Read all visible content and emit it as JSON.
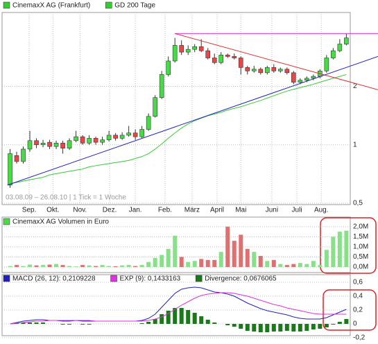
{
  "chart_data": [
    {
      "type": "candlestick",
      "name": "CinemaxX AG (Frankfurt)",
      "legend_color": "#33cc33",
      "up_color": "#44dd44",
      "down_color": "#ee4444",
      "open": [
        0.62,
        0.88,
        0.82,
        0.95,
        1.05,
        1.0,
        1.03,
        0.98,
        1.02,
        0.96,
        1.05,
        1.1,
        1.02,
        1.08,
        1.03,
        1.06,
        1.12,
        1.08,
        1.12,
        1.15,
        1.1,
        1.2,
        1.4,
        1.75,
        2.3,
        2.7,
        3.25,
        3.0,
        3.1,
        3.2,
        3.05,
        2.8,
        2.65,
        2.9,
        2.85,
        2.8,
        2.5,
        2.4,
        2.45,
        2.35,
        2.5,
        2.4,
        2.45,
        2.35,
        2.1,
        2.15,
        2.2,
        2.25,
        2.4,
        2.8,
        3.05,
        3.3
      ],
      "high": [
        0.95,
        0.92,
        0.98,
        1.18,
        1.08,
        1.06,
        1.06,
        1.05,
        1.05,
        1.08,
        1.18,
        1.12,
        1.12,
        1.1,
        1.1,
        1.18,
        1.15,
        1.16,
        1.25,
        1.2,
        1.25,
        1.45,
        1.8,
        2.4,
        2.85,
        3.55,
        3.45,
        3.25,
        3.3,
        3.5,
        3.15,
        2.95,
        3.0,
        2.95,
        2.95,
        2.85,
        2.55,
        2.55,
        2.5,
        2.55,
        2.6,
        2.5,
        2.5,
        2.4,
        2.2,
        2.25,
        2.3,
        2.45,
        2.9,
        3.15,
        3.5,
        3.75
      ],
      "low": [
        0.6,
        0.8,
        0.8,
        0.92,
        0.96,
        0.97,
        0.95,
        0.95,
        0.9,
        0.94,
        1.03,
        1.0,
        1.0,
        1.0,
        1.0,
        1.04,
        1.05,
        1.06,
        1.1,
        1.06,
        1.08,
        1.18,
        1.38,
        1.72,
        2.25,
        2.65,
        2.9,
        2.9,
        3.0,
        3.0,
        2.75,
        2.6,
        2.6,
        2.8,
        2.75,
        2.3,
        2.3,
        2.35,
        2.3,
        2.3,
        2.35,
        2.35,
        2.3,
        2.05,
        2.05,
        2.1,
        2.15,
        2.2,
        2.35,
        2.75,
        3.0,
        3.25
      ],
      "close": [
        0.9,
        0.82,
        0.95,
        1.05,
        1.0,
        1.02,
        0.98,
        1.02,
        0.96,
        1.05,
        1.1,
        1.02,
        1.08,
        1.03,
        1.06,
        1.12,
        1.08,
        1.12,
        1.15,
        1.1,
        1.2,
        1.4,
        1.75,
        2.3,
        2.7,
        3.25,
        3.0,
        3.1,
        3.2,
        3.05,
        2.8,
        2.65,
        2.9,
        2.85,
        2.8,
        2.5,
        2.4,
        2.45,
        2.35,
        2.5,
        2.4,
        2.45,
        2.35,
        2.1,
        2.15,
        2.2,
        2.25,
        2.4,
        2.8,
        3.05,
        3.3,
        3.55
      ],
      "series": [
        {
          "name": "GD 200 Tage",
          "color": "#33cc33",
          "values": [
            0.63,
            0.64,
            0.65,
            0.66,
            0.67,
            0.68,
            0.7,
            0.71,
            0.72,
            0.73,
            0.74,
            0.75,
            0.77,
            0.78,
            0.79,
            0.8,
            0.81,
            0.82,
            0.83,
            0.85,
            0.87,
            0.9,
            0.95,
            1.01,
            1.08,
            1.15,
            1.22,
            1.28,
            1.33,
            1.37,
            1.41,
            1.44,
            1.47,
            1.51,
            1.54,
            1.57,
            1.61,
            1.65,
            1.69,
            1.74,
            1.79,
            1.84,
            1.89,
            1.93,
            1.97,
            2.01,
            2.05,
            2.1,
            2.15,
            2.2,
            2.25,
            2.3
          ]
        }
      ],
      "trend_lines": [
        {
          "color": "#e030e0",
          "x": [
            25,
            55.8
          ],
          "y": [
            3.74,
            3.74
          ]
        },
        {
          "color": "#e03030",
          "x": [
            25,
            55.8
          ],
          "y": [
            3.74,
            1.92
          ]
        },
        {
          "color": "#2020c0",
          "x": [
            -0.4,
            55.8
          ],
          "y": [
            0.62,
            2.85
          ]
        }
      ],
      "note": "03.08.09 – 26.08.10 | 1 Tick = 1 Woche",
      "xlim": [
        -1,
        55.8
      ],
      "xticks": [
        {
          "value": 2.9,
          "label": "Sep."
        },
        {
          "value": 6.5,
          "label": "Okt."
        },
        {
          "value": 10.6,
          "label": "Nov."
        },
        {
          "value": 15.1,
          "label": "Dez."
        },
        {
          "value": 19.0,
          "label": "Jan."
        },
        {
          "value": 23.5,
          "label": "Feb."
        },
        {
          "value": 27.6,
          "label": "März"
        },
        {
          "value": 31.4,
          "label": "April"
        },
        {
          "value": 35.0,
          "label": "Mai"
        },
        {
          "value": 39.7,
          "label": "Juni"
        },
        {
          "value": 43.5,
          "label": "Juli"
        },
        {
          "value": 47.2,
          "label": "Aug."
        }
      ],
      "log": true,
      "ylim": [
        0.5,
        4.8
      ],
      "yticks": [
        2,
        1,
        {
          "value": 0.5,
          "label": "0,5"
        }
      ]
    },
    {
      "type": "bar",
      "name": "CinemaxX AG Volumen in Euro",
      "legend_color": "#44dd44",
      "up_color": "#88e088",
      "down_color": "#e07070",
      "values": [
        0.05,
        0.1,
        0.05,
        0.12,
        0.08,
        0.1,
        0.12,
        0.15,
        0.1,
        0.05,
        0.03,
        0.1,
        0.08,
        0.05,
        0.1,
        0.05,
        0.04,
        0.08,
        0.1,
        0.05,
        0.1,
        0.25,
        0.45,
        0.6,
        0.9,
        1.55,
        0.5,
        0.25,
        0.3,
        0.4,
        0.35,
        0.35,
        0.75,
        2.0,
        1.3,
        1.6,
        0.9,
        0.75,
        0.55,
        0.3,
        0.35,
        0.15,
        0.1,
        0.15,
        0.2,
        0.15,
        0.3,
        0.1,
        0.85,
        1.5,
        1.75,
        1.8
      ],
      "xlim": [
        -1,
        55.8
      ],
      "ylim": [
        0,
        2.2
      ],
      "yticks": [
        {
          "value": 2,
          "label": "2,0M"
        },
        {
          "value": 1.5,
          "label": "1,5M"
        },
        {
          "value": 1,
          "label": "1,0M"
        },
        {
          "value": 0.5,
          "label": "0,5M"
        },
        {
          "value": 0,
          "label": "0,0M"
        }
      ]
    },
    {
      "type": "line",
      "series": [
        {
          "name": "MACD (26, 12): 0,2109228",
          "color": "#2020c0",
          "values": [
            0.0,
            0.02,
            0.04,
            0.05,
            0.06,
            0.06,
            0.05,
            0.05,
            0.04,
            0.04,
            0.05,
            0.04,
            0.04,
            0.04,
            0.04,
            0.04,
            0.04,
            0.04,
            0.04,
            0.04,
            0.05,
            0.08,
            0.14,
            0.24,
            0.34,
            0.44,
            0.5,
            0.52,
            0.53,
            0.52,
            0.49,
            0.46,
            0.45,
            0.43,
            0.4,
            0.35,
            0.3,
            0.26,
            0.22,
            0.19,
            0.17,
            0.15,
            0.13,
            0.1,
            0.08,
            0.07,
            0.07,
            0.07,
            0.09,
            0.13,
            0.17,
            0.21
          ]
        },
        {
          "name": "EXP (9): 0,1433163",
          "color": "#e030e0",
          "values": [
            0.0,
            0.01,
            0.02,
            0.03,
            0.04,
            0.04,
            0.05,
            0.05,
            0.05,
            0.05,
            0.05,
            0.05,
            0.05,
            0.04,
            0.04,
            0.04,
            0.04,
            0.04,
            0.04,
            0.04,
            0.04,
            0.05,
            0.07,
            0.1,
            0.15,
            0.21,
            0.27,
            0.32,
            0.37,
            0.41,
            0.43,
            0.44,
            0.45,
            0.45,
            0.44,
            0.42,
            0.4,
            0.37,
            0.34,
            0.31,
            0.28,
            0.26,
            0.23,
            0.21,
            0.19,
            0.17,
            0.15,
            0.14,
            0.14,
            0.14,
            0.14,
            0.14
          ]
        },
        {
          "name": "Divergence: 0,0676065",
          "color": "#1a7a1a",
          "kind": "bar",
          "values": [
            0.0,
            0.01,
            0.02,
            0.02,
            0.02,
            0.02,
            0.0,
            0.0,
            -0.01,
            -0.01,
            0.0,
            -0.01,
            -0.01,
            0.0,
            0.0,
            0.0,
            0.0,
            0.0,
            0.0,
            0.0,
            0.01,
            0.03,
            0.07,
            0.14,
            0.19,
            0.23,
            0.23,
            0.2,
            0.16,
            0.11,
            0.06,
            0.02,
            0.0,
            -0.02,
            -0.04,
            -0.07,
            -0.1,
            -0.11,
            -0.12,
            -0.12,
            -0.11,
            -0.11,
            -0.1,
            -0.11,
            -0.11,
            -0.1,
            -0.08,
            -0.07,
            -0.05,
            -0.01,
            0.03,
            0.07
          ]
        }
      ],
      "xlim": [
        -1,
        55.8
      ],
      "ylim": [
        -0.2,
        0.65
      ],
      "yticks": [
        {
          "value": 0.6,
          "label": "0,6"
        },
        {
          "value": 0.4,
          "label": "0,4"
        },
        {
          "value": 0.2,
          "label": "0,2"
        },
        0,
        {
          "value": -0.2,
          "label": "-0,2"
        }
      ]
    }
  ]
}
